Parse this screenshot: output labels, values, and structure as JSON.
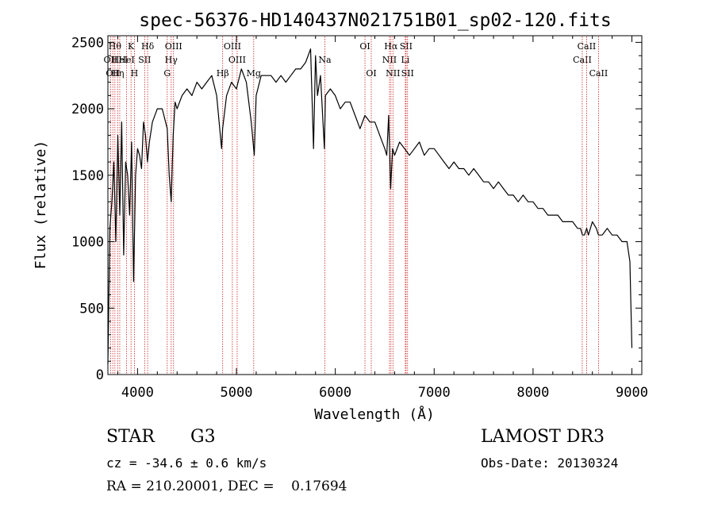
{
  "chart_data": {
    "type": "line",
    "title": "spec-56376-HD140437N021751B01_sp02-120.fits",
    "xlabel": "Wavelength (Å)",
    "ylabel": "Flux (relative)",
    "xlim": [
      3700,
      9100
    ],
    "ylim": [
      0,
      2550
    ],
    "xticks": [
      4000,
      5000,
      6000,
      7000,
      8000,
      9000
    ],
    "yticks": [
      0,
      500,
      1000,
      1500,
      2000,
      2500
    ],
    "series": [
      {
        "name": "flux",
        "color": "#000000",
        "x": [
          3700,
          3720,
          3740,
          3760,
          3780,
          3800,
          3820,
          3840,
          3860,
          3880,
          3900,
          3920,
          3940,
          3960,
          3980,
          4000,
          4020,
          4040,
          4060,
          4080,
          4100,
          4120,
          4150,
          4200,
          4250,
          4300,
          4320,
          4340,
          4360,
          4380,
          4400,
          4450,
          4500,
          4550,
          4600,
          4650,
          4700,
          4750,
          4800,
          4850,
          4860,
          4900,
          4950,
          5000,
          5050,
          5100,
          5150,
          5180,
          5200,
          5250,
          5300,
          5350,
          5400,
          5450,
          5500,
          5550,
          5600,
          5650,
          5700,
          5750,
          5780,
          5800,
          5820,
          5850,
          5890,
          5900,
          5950,
          6000,
          6050,
          6100,
          6150,
          6200,
          6250,
          6300,
          6350,
          6400,
          6450,
          6500,
          6520,
          6540,
          6560,
          6563,
          6580,
          6600,
          6650,
          6700,
          6750,
          6800,
          6850,
          6900,
          6950,
          7000,
          7050,
          7100,
          7150,
          7200,
          7250,
          7300,
          7350,
          7400,
          7450,
          7500,
          7550,
          7600,
          7650,
          7700,
          7750,
          7800,
          7850,
          7900,
          7950,
          8000,
          8050,
          8100,
          8150,
          8200,
          8250,
          8300,
          8350,
          8400,
          8450,
          8480,
          8500,
          8520,
          8542,
          8560,
          8600,
          8640,
          8662,
          8700,
          8750,
          8800,
          8850,
          8900,
          8950,
          8980,
          9000
        ],
        "y": [
          80,
          1100,
          1300,
          1600,
          1000,
          1800,
          1200,
          1900,
          900,
          1600,
          1500,
          1200,
          1750,
          700,
          1500,
          1700,
          1650,
          1550,
          1900,
          1800,
          1600,
          1750,
          1900,
          2000,
          2000,
          1850,
          1500,
          1300,
          1800,
          2050,
          2000,
          2100,
          2150,
          2100,
          2200,
          2150,
          2200,
          2250,
          2100,
          1700,
          1850,
          2100,
          2200,
          2150,
          2300,
          2200,
          1900,
          1650,
          2100,
          2250,
          2250,
          2250,
          2200,
          2250,
          2200,
          2250,
          2300,
          2300,
          2350,
          2450,
          1700,
          2400,
          2100,
          2250,
          1700,
          2100,
          2150,
          2100,
          2000,
          2050,
          2050,
          1950,
          1850,
          1950,
          1900,
          1900,
          1800,
          1700,
          1650,
          1950,
          1400,
          1450,
          1700,
          1650,
          1750,
          1700,
          1650,
          1700,
          1750,
          1650,
          1700,
          1700,
          1650,
          1600,
          1550,
          1600,
          1550,
          1550,
          1500,
          1550,
          1500,
          1450,
          1450,
          1400,
          1450,
          1400,
          1350,
          1350,
          1300,
          1350,
          1300,
          1300,
          1250,
          1250,
          1200,
          1200,
          1200,
          1150,
          1150,
          1150,
          1100,
          1100,
          1050,
          1050,
          1100,
          1050,
          1150,
          1100,
          1050,
          1050,
          1100,
          1050,
          1050,
          1000,
          1000,
          850,
          200
        ]
      }
    ],
    "line_ids": [
      {
        "wl": 3727,
        "label": "OII",
        "row": 2
      },
      {
        "wl": 3750,
        "label": "OII",
        "row": 3
      },
      {
        "wl": 3771,
        "label": "Hθ",
        "row": 1
      },
      {
        "wl": 3799,
        "label": "Hη",
        "row": 3
      },
      {
        "wl": 3820,
        "label": "HeI",
        "row": 2
      },
      {
        "wl": 3889,
        "label": "HeI",
        "row": 2
      },
      {
        "wl": 3934,
        "label": "K",
        "row": 1
      },
      {
        "wl": 3968,
        "label": "H",
        "row": 3
      },
      {
        "wl": 4072,
        "label": "SII",
        "row": 2
      },
      {
        "wl": 4102,
        "label": "Hδ",
        "row": 1
      },
      {
        "wl": 4300,
        "label": "G",
        "row": 3
      },
      {
        "wl": 4340,
        "label": "Hγ",
        "row": 2
      },
      {
        "wl": 4364,
        "label": "OIII",
        "row": 1
      },
      {
        "wl": 4861,
        "label": "Hβ",
        "row": 3
      },
      {
        "wl": 4959,
        "label": "OIII",
        "row": 1
      },
      {
        "wl": 5007,
        "label": "OIII",
        "row": 2
      },
      {
        "wl": 5175,
        "label": "Mg",
        "row": 3
      },
      {
        "wl": 5894,
        "label": "Na",
        "row": 2
      },
      {
        "wl": 6300,
        "label": "OI",
        "row": 1
      },
      {
        "wl": 6364,
        "label": "OI",
        "row": 3
      },
      {
        "wl": 6548,
        "label": "NII",
        "row": 2
      },
      {
        "wl": 6563,
        "label": "Hα",
        "row": 1
      },
      {
        "wl": 6583,
        "label": "NII",
        "row": 3
      },
      {
        "wl": 6708,
        "label": "Li",
        "row": 2
      },
      {
        "wl": 6716,
        "label": "SII",
        "row": 1
      },
      {
        "wl": 6731,
        "label": "SII",
        "row": 3
      },
      {
        "wl": 8498,
        "label": "CaII",
        "row": 2
      },
      {
        "wl": 8542,
        "label": "CaII",
        "row": 1
      },
      {
        "wl": 8662,
        "label": "CaII",
        "row": 3
      }
    ],
    "line_id_color": "#cc2222"
  },
  "info": {
    "class_label": "STAR",
    "subclass": "G3",
    "cz": "cz = -34.6 ± 0.6 km/s",
    "coords": "RA = 210.20001, DEC =    0.17694",
    "survey": "LAMOST DR3",
    "obs_date": "Obs-Date: 20130324"
  }
}
